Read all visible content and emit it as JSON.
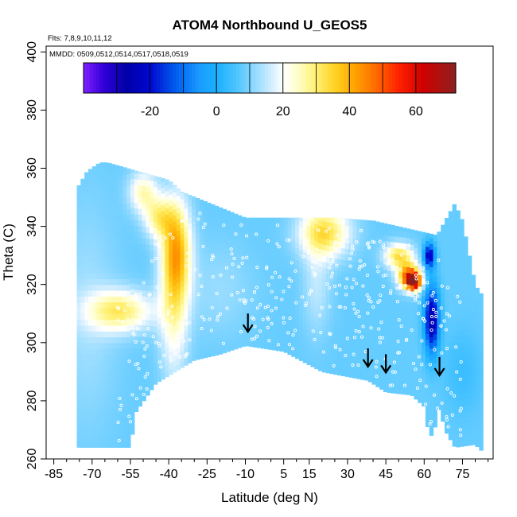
{
  "chart_data": {
    "type": "heatmap",
    "title": "ATOM4 Northbound U_GEOS5",
    "annotations": {
      "flights": "Flts: 7,8,9,10,11,12",
      "dates": "MMDD: 0509,0512,0514,0517,0518,0519"
    },
    "xlabel": "Latitude (deg N)",
    "ylabel": "Theta (C)",
    "xlim": [
      -88,
      87
    ],
    "ylim": [
      260,
      402
    ],
    "x_ticks": [
      -85,
      -70,
      -55,
      -40,
      -25,
      -10,
      5,
      15,
      30,
      45,
      60,
      75
    ],
    "y_ticks": [
      260,
      280,
      300,
      320,
      340,
      360,
      380,
      400
    ],
    "colorbar": {
      "range": [
        -40,
        72
      ],
      "ticks": [
        -20,
        0,
        20,
        40,
        60
      ],
      "colors": [
        {
          "v": -40,
          "c": "#7f1fff"
        },
        {
          "v": -34,
          "c": "#3200d8"
        },
        {
          "v": -27,
          "c": "#0000a8"
        },
        {
          "v": -20,
          "c": "#0008d0"
        },
        {
          "v": -12,
          "c": "#0060f0"
        },
        {
          "v": -5,
          "c": "#1a9cff"
        },
        {
          "v": 0,
          "c": "#1ab0ff"
        },
        {
          "v": 6,
          "c": "#4cc4ff"
        },
        {
          "v": 12,
          "c": "#98dcff"
        },
        {
          "v": 17,
          "c": "#d8f0ff"
        },
        {
          "v": 20,
          "c": "#ffffff"
        },
        {
          "v": 24,
          "c": "#ffffd0"
        },
        {
          "v": 30,
          "c": "#fff070"
        },
        {
          "v": 36,
          "c": "#ffd020"
        },
        {
          "v": 42,
          "c": "#ffa000"
        },
        {
          "v": 48,
          "c": "#ff6a00"
        },
        {
          "v": 55,
          "c": "#ff2000"
        },
        {
          "v": 62,
          "c": "#d00000"
        },
        {
          "v": 67,
          "c": "#b01010"
        },
        {
          "v": 72,
          "c": "#8b2020"
        }
      ]
    },
    "background_value": 8,
    "boundary_top": [
      [
        -76,
        353
      ],
      [
        -72,
        359
      ],
      [
        -67,
        362
      ],
      [
        -64,
        362
      ],
      [
        -40,
        356
      ],
      [
        -35,
        352
      ],
      [
        -10,
        343
      ],
      [
        10,
        343
      ],
      [
        25,
        343
      ],
      [
        40,
        342
      ],
      [
        55,
        339
      ],
      [
        65,
        337
      ],
      [
        72,
        348
      ],
      [
        75,
        342
      ],
      [
        80,
        320
      ],
      [
        82,
        317
      ]
    ],
    "boundary_bottom": [
      [
        -85,
        271
      ],
      [
        -82,
        265
      ],
      [
        -75,
        264
      ],
      [
        -55,
        264
      ],
      [
        -53,
        276
      ],
      [
        -45,
        286
      ],
      [
        -30,
        294
      ],
      [
        -20,
        296
      ],
      [
        -10,
        299
      ],
      [
        5,
        297
      ],
      [
        20,
        290
      ],
      [
        38,
        287
      ],
      [
        45,
        283
      ],
      [
        55,
        282
      ],
      [
        60,
        278
      ],
      [
        62,
        267
      ],
      [
        64,
        270
      ],
      [
        66,
        278
      ],
      [
        68,
        270
      ],
      [
        72,
        264
      ],
      [
        80,
        265
      ],
      [
        82,
        263
      ]
    ],
    "features": [
      {
        "lat": -59,
        "theta": 311,
        "slat": 9,
        "stheta": 5,
        "u": 30
      },
      {
        "lat": -37,
        "theta": 332,
        "slat": 4,
        "stheta": 12,
        "u": 35
      },
      {
        "lat": -38,
        "theta": 312,
        "slat": 4,
        "stheta": 18,
        "u": 23
      },
      {
        "lat": -50,
        "theta": 352,
        "slat": 4,
        "stheta": 5,
        "u": 25
      },
      {
        "lat": -44,
        "theta": 343,
        "slat": 4,
        "stheta": 5,
        "u": 26
      },
      {
        "lat": 21,
        "theta": 338,
        "slat": 7,
        "stheta": 6,
        "u": 33
      },
      {
        "lat": 18,
        "theta": 320,
        "slat": 4,
        "stheta": 12,
        "u": 15
      },
      {
        "lat": 50,
        "theta": 330,
        "slat": 4,
        "stheta": 3,
        "u": 33
      },
      {
        "lat": 54,
        "theta": 323,
        "slat": 3,
        "stheta": 3,
        "u": 48
      },
      {
        "lat": 56,
        "theta": 321,
        "slat": 2,
        "stheta": 2,
        "u": 60
      },
      {
        "lat": 63,
        "theta": 308,
        "slat": 2,
        "stheta": 8,
        "u": -28
      },
      {
        "lat": 62,
        "theta": 330,
        "slat": 1.5,
        "stheta": 3,
        "u": -25
      },
      {
        "lat": -72,
        "theta": 310,
        "slat": 9,
        "stheta": 28,
        "u": 13
      },
      {
        "lat": -20,
        "theta": 318,
        "slat": 10,
        "stheta": 12,
        "u": 12
      },
      {
        "lat": 75,
        "theta": 290,
        "slat": 5,
        "stheta": 10,
        "u": 4
      }
    ],
    "arrows": [
      {
        "lat": -9,
        "theta": 304
      },
      {
        "lat": 38,
        "theta": 292
      },
      {
        "lat": 45,
        "theta": 290
      },
      {
        "lat": 66,
        "theta": 289
      }
    ]
  }
}
